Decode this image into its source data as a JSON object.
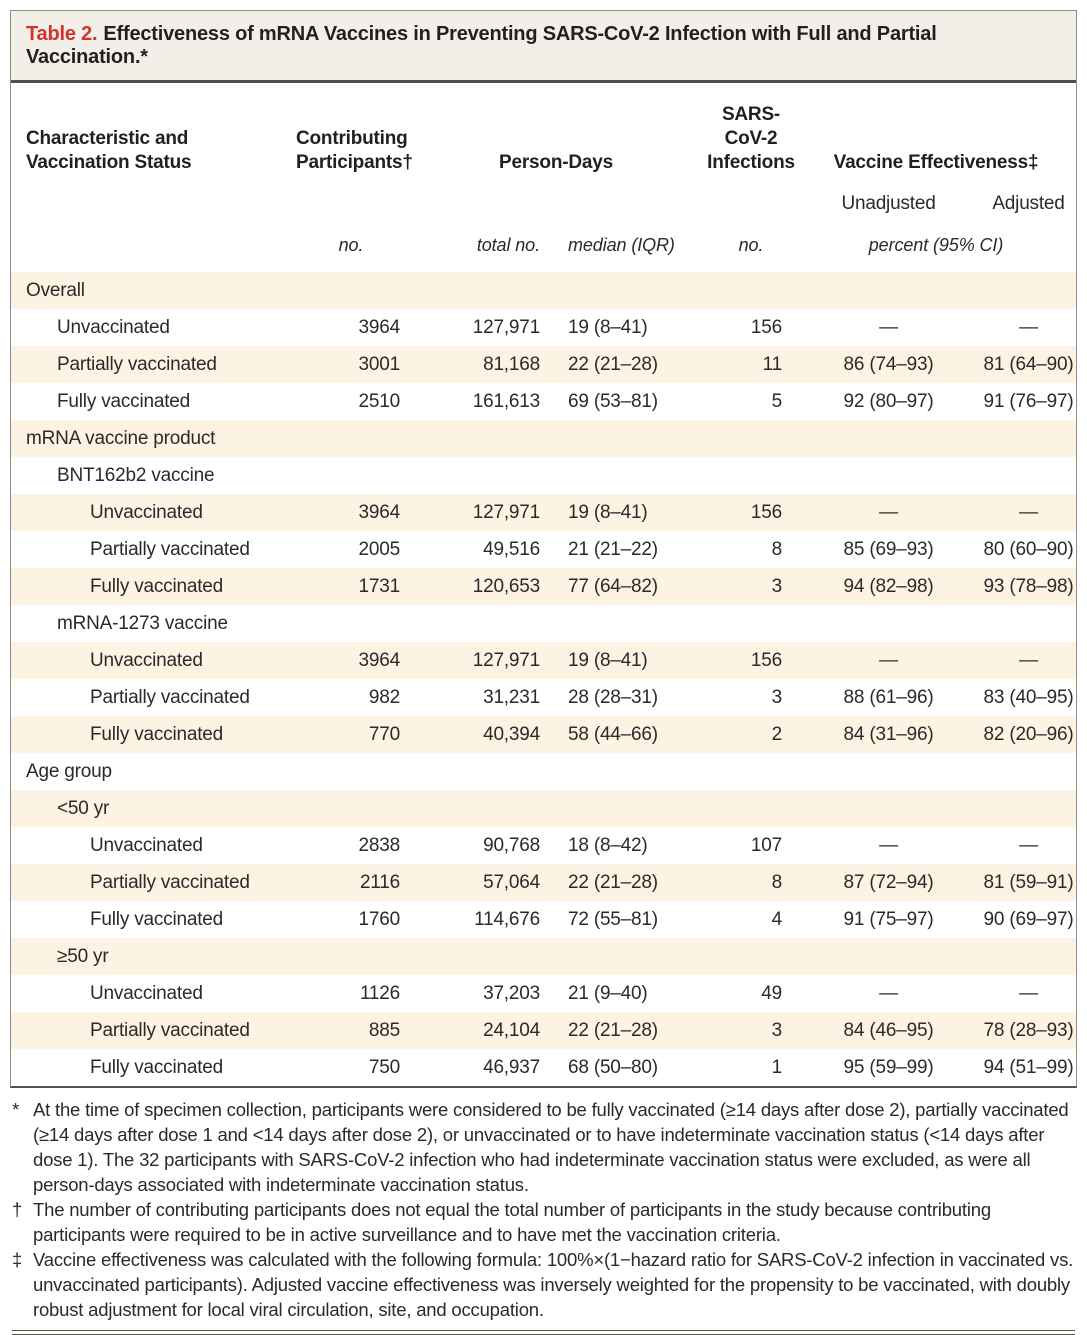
{
  "title": {
    "label": "Table 2.",
    "text": "Effectiveness of mRNA Vaccines in Preventing SARS-CoV-2 Infection with Full and Partial Vaccination.*"
  },
  "header": {
    "characteristic": "Characteristic and\nVaccination Status",
    "contributing_participants": "Contributing\nParticipants†",
    "person_days": "Person-Days",
    "infections": "SARS-CoV-2\nInfections",
    "vaccine_effectiveness": "Vaccine Effectiveness‡",
    "unadjusted": "Unadjusted",
    "adjusted": "Adjusted",
    "units": {
      "participants": "no.",
      "person_days_total": "total no.",
      "person_days_median": "median (IQR)",
      "infections": "no.",
      "effectiveness": "percent (95% CI)"
    }
  },
  "table": {
    "rows": [
      {
        "label": "Overall",
        "indent": 0,
        "type": "section",
        "values": []
      },
      {
        "label": "Unvaccinated",
        "indent": 1,
        "type": "data",
        "values": [
          "3964",
          "127,971",
          "19 (8–41)",
          "156",
          "—",
          "—"
        ]
      },
      {
        "label": "Partially vaccinated",
        "indent": 1,
        "type": "data",
        "values": [
          "3001",
          "81,168",
          "22 (21–28)",
          "11",
          "86 (74–93)",
          "81 (64–90)"
        ]
      },
      {
        "label": "Fully vaccinated",
        "indent": 1,
        "type": "data",
        "values": [
          "2510",
          "161,613",
          "69 (53–81)",
          "5",
          "92 (80–97)",
          "91 (76–97)"
        ]
      },
      {
        "label": "mRNA vaccine product",
        "indent": 0,
        "type": "section",
        "values": []
      },
      {
        "label": "BNT162b2 vaccine",
        "indent": 1,
        "type": "section",
        "values": []
      },
      {
        "label": "Unvaccinated",
        "indent": 2,
        "type": "data",
        "values": [
          "3964",
          "127,971",
          "19 (8–41)",
          "156",
          "—",
          "—"
        ]
      },
      {
        "label": "Partially vaccinated",
        "indent": 2,
        "type": "data",
        "values": [
          "2005",
          "49,516",
          "21 (21–22)",
          "8",
          "85 (69–93)",
          "80 (60–90)"
        ]
      },
      {
        "label": "Fully vaccinated",
        "indent": 2,
        "type": "data",
        "values": [
          "1731",
          "120,653",
          "77 (64–82)",
          "3",
          "94 (82–98)",
          "93 (78–98)"
        ]
      },
      {
        "label": "mRNA-1273 vaccine",
        "indent": 1,
        "type": "section",
        "values": []
      },
      {
        "label": "Unvaccinated",
        "indent": 2,
        "type": "data",
        "values": [
          "3964",
          "127,971",
          "19 (8–41)",
          "156",
          "—",
          "—"
        ]
      },
      {
        "label": "Partially vaccinated",
        "indent": 2,
        "type": "data",
        "values": [
          "982",
          "31,231",
          "28 (28–31)",
          "3",
          "88 (61–96)",
          "83 (40–95)"
        ]
      },
      {
        "label": "Fully vaccinated",
        "indent": 2,
        "type": "data",
        "values": [
          "770",
          "40,394",
          "58 (44–66)",
          "2",
          "84 (31–96)",
          "82 (20–96)"
        ]
      },
      {
        "label": "Age group",
        "indent": 0,
        "type": "section",
        "values": []
      },
      {
        "label": "<50 yr",
        "indent": 1,
        "type": "section",
        "values": []
      },
      {
        "label": "Unvaccinated",
        "indent": 2,
        "type": "data",
        "values": [
          "2838",
          "90,768",
          "18 (8–42)",
          "107",
          "—",
          "—"
        ]
      },
      {
        "label": "Partially vaccinated",
        "indent": 2,
        "type": "data",
        "values": [
          "2116",
          "57,064",
          "22 (21–28)",
          "8",
          "87 (72–94)",
          "81 (59–91)"
        ]
      },
      {
        "label": "Fully vaccinated",
        "indent": 2,
        "type": "data",
        "values": [
          "1760",
          "114,676",
          "72 (55–81)",
          "4",
          "91 (75–97)",
          "90 (69–97)"
        ]
      },
      {
        "label": "≥50 yr",
        "indent": 1,
        "type": "section",
        "values": []
      },
      {
        "label": "Unvaccinated",
        "indent": 2,
        "type": "data",
        "values": [
          "1126",
          "37,203",
          "21 (9–40)",
          "49",
          "—",
          "—"
        ]
      },
      {
        "label": "Partially vaccinated",
        "indent": 2,
        "type": "data",
        "values": [
          "885",
          "24,104",
          "22 (21–28)",
          "3",
          "84 (46–95)",
          "78 (28–93)"
        ]
      },
      {
        "label": "Fully vaccinated",
        "indent": 2,
        "type": "data",
        "values": [
          "750",
          "46,937",
          "68 (50–80)",
          "1",
          "95 (59–99)",
          "94 (51–99)"
        ]
      }
    ]
  },
  "footnotes": [
    {
      "marker": "*",
      "text": "At the time of specimen collection, participants were considered to be fully vaccinated (≥14 days after dose 2), partially vaccinated (≥14 days after dose 1 and <14 days after dose 2), or unvaccinated or to have indeterminate vaccination status (<14 days after dose 1). The 32 participants with SARS-CoV-2 infection who had indeterminate vaccination status were excluded, as were all person-days associated with indeterminate vaccination status."
    },
    {
      "marker": "†",
      "text": "The number of contributing participants does not equal the total number of participants in the study because contributing participants were required to be in active surveillance and to have met the vaccination criteria."
    },
    {
      "marker": "‡",
      "text": "Vaccine effectiveness was calculated with the following formula: 100%×(1−hazard ratio for SARS-CoV-2 infection in vaccinated vs. unvaccinated participants). Adjusted vaccine effectiveness was inversely weighted for the propensity to be vaccinated, with doubly robust adjustment for local viral circulation, site, and occupation."
    }
  ],
  "colors": {
    "accent_red": "#d0342c",
    "row_shade": "#fdf3e2",
    "title_bar_bg": "#f2efe9",
    "rule_dark": "#514f4a",
    "border_gray": "#8f8d87"
  }
}
